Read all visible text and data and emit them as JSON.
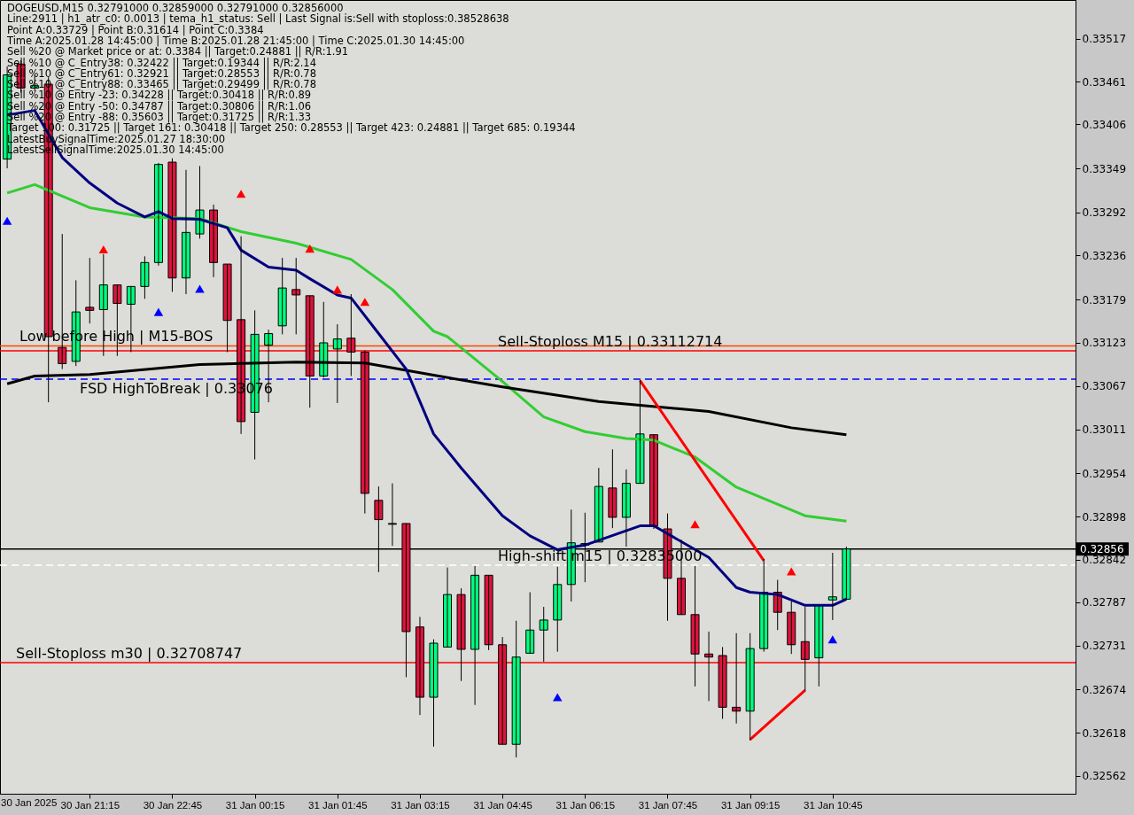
{
  "chart_data": {
    "type": "candlestick",
    "title": "DOGEUSD,M15  0.32791000 0.32859000 0.32791000 0.32856000",
    "annotations": [
      "Line:2911 | h1_atr_c0: 0.0013 | tema_h1_status: Sell | Last Signal is:Sell with stoploss:0.38528638",
      "Point A:0.33729 | Point B:0.31614 | Point C:0.3384",
      "Time A:2025.01.28 14:45:00 | Time B:2025.01.28 21:45:00 | Time C:2025.01.30 14:45:00",
      "Sell %20 @ Market price or at: 0.3384 || Target:0.24881 || R/R:1.91",
      "Sell %10 @ C_Entry38: 0.32422 || Target:0.19344 || R/R:2.14",
      "Sell %10 @ C_Entry61: 0.32921 || Target:0.28553 || R/R:0.78",
      "Sell %10 @ C_Entry88: 0.33465 || Target:0.29499 || R/R:0.78",
      "Sell %10 @ Entry -23: 0.34228 || Target:0.30418 || R/R:0.89",
      "Sell %20 @ Entry -50: 0.34787 || Target:0.30806 || R/R:1.06",
      "Sell %20 @ Entry -88: 0.35603 || Target:0.31725 || R/R:1.33",
      "Target 100: 0.31725 || Target 161: 0.30418 || Target 250: 0.28553 || Target 423: 0.24881 || Target 685: 0.19344",
      "LatestBuySignalTime:2025.01.27 18:30:00",
      "LatestSellSignalTime:2025.01.30 14:45:00",
      "30 Jan 2025"
    ],
    "x": [
      "2025-01-30T19:45",
      "2025-01-30T20:00",
      "2025-01-30T20:15",
      "2025-01-30T20:30",
      "2025-01-30T20:45",
      "2025-01-30T21:00",
      "2025-01-30T21:15",
      "2025-01-30T21:30",
      "2025-01-30T21:45",
      "2025-01-30T22:00",
      "2025-01-30T22:15",
      "2025-01-30T22:30",
      "2025-01-30T22:45",
      "2025-01-30T23:00",
      "2025-01-30T23:15",
      "2025-01-30T23:30",
      "2025-01-30T23:45",
      "2025-01-31T00:00",
      "2025-01-31T00:15",
      "2025-01-31T00:30",
      "2025-01-31T00:45",
      "2025-01-31T01:00",
      "2025-01-31T01:15",
      "2025-01-31T01:30",
      "2025-01-31T01:45",
      "2025-01-31T02:00",
      "2025-01-31T02:15",
      "2025-01-31T02:30",
      "2025-01-31T02:45",
      "2025-01-31T03:00",
      "2025-01-31T03:15",
      "2025-01-31T03:30",
      "2025-01-31T03:45",
      "2025-01-31T04:00",
      "2025-01-31T04:15",
      "2025-01-31T04:30",
      "2025-01-31T04:45",
      "2025-01-31T05:00",
      "2025-01-31T05:15",
      "2025-01-31T05:30",
      "2025-01-31T05:45",
      "2025-01-31T06:00",
      "2025-01-31T06:15",
      "2025-01-31T06:30",
      "2025-01-31T06:45",
      "2025-01-31T07:00",
      "2025-01-31T07:15",
      "2025-01-31T07:30",
      "2025-01-31T07:45",
      "2025-01-31T08:00",
      "2025-01-31T08:15",
      "2025-01-31T08:30",
      "2025-01-31T08:45",
      "2025-01-31T09:00",
      "2025-01-31T09:15",
      "2025-01-31T09:30",
      "2025-01-31T09:45",
      "2025-01-31T10:00",
      "2025-01-31T10:15",
      "2025-01-31T10:30",
      "2025-01-31T10:45",
      "2025-01-31T11:00"
    ],
    "ohlc": [
      [
        0.33361,
        0.33481,
        0.33349,
        0.3347
      ],
      [
        0.33484,
        0.33489,
        0.33447,
        0.33453
      ],
      [
        0.33453,
        0.3347,
        0.33449,
        0.33456
      ],
      [
        0.33458,
        0.33467,
        0.33046,
        0.33131
      ],
      [
        0.33117,
        0.33264,
        0.33089,
        0.33096
      ],
      [
        0.33099,
        0.33204,
        0.33093,
        0.33163
      ],
      [
        0.33169,
        0.33233,
        0.33148,
        0.33165
      ],
      [
        0.33166,
        0.33238,
        0.33106,
        0.33198
      ],
      [
        0.33198,
        0.33198,
        0.33106,
        0.33174
      ],
      [
        0.33173,
        0.33196,
        0.33111,
        0.33196
      ],
      [
        0.33196,
        0.33235,
        0.3318,
        0.33227
      ],
      [
        0.33227,
        0.33356,
        0.33223,
        0.33354
      ],
      [
        0.33357,
        0.33362,
        0.33189,
        0.33207
      ],
      [
        0.33207,
        0.33347,
        0.33186,
        0.33266
      ],
      [
        0.33264,
        0.33352,
        0.33258,
        0.33295
      ],
      [
        0.33295,
        0.33302,
        0.33208,
        0.33227
      ],
      [
        0.33225,
        0.33225,
        0.33111,
        0.33152
      ],
      [
        0.33153,
        0.33261,
        0.33005,
        0.33021
      ],
      [
        0.33033,
        0.33165,
        0.32972,
        0.33134
      ],
      [
        0.3312,
        0.3314,
        0.33046,
        0.33135
      ],
      [
        0.33145,
        0.33233,
        0.33134,
        0.33194
      ],
      [
        0.33192,
        0.33233,
        0.33134,
        0.33185
      ],
      [
        0.33184,
        0.33184,
        0.33039,
        0.3308
      ],
      [
        0.3308,
        0.33176,
        0.33078,
        0.33123
      ],
      [
        0.33115,
        0.33147,
        0.33045,
        0.33128
      ],
      [
        0.33129,
        0.33186,
        0.3308,
        0.33111
      ],
      [
        0.33111,
        0.33113,
        0.32902,
        0.32928
      ],
      [
        0.32919,
        0.32937,
        0.32826,
        0.32894
      ],
      [
        0.32889,
        0.32941,
        0.3286,
        0.32888
      ],
      [
        0.32889,
        0.32889,
        0.3269,
        0.32749
      ],
      [
        0.32755,
        0.32768,
        0.32641,
        0.32664
      ],
      [
        0.32664,
        0.32739,
        0.326,
        0.32734
      ],
      [
        0.32729,
        0.32832,
        0.32729,
        0.32797
      ],
      [
        0.32797,
        0.32805,
        0.32685,
        0.32726
      ],
      [
        0.32726,
        0.32834,
        0.32654,
        0.32822
      ],
      [
        0.32822,
        0.32822,
        0.32725,
        0.32732
      ],
      [
        0.32732,
        0.32742,
        0.32603,
        0.32603
      ],
      [
        0.32603,
        0.32763,
        0.32586,
        0.32716
      ],
      [
        0.32721,
        0.328,
        0.32721,
        0.32751
      ],
      [
        0.32751,
        0.32781,
        0.3271,
        0.32764
      ],
      [
        0.32764,
        0.32833,
        0.32723,
        0.3281
      ],
      [
        0.3281,
        0.32907,
        0.32788,
        0.32864
      ],
      [
        0.32861,
        0.32903,
        0.32813,
        0.32863
      ],
      [
        0.32865,
        0.32961,
        0.32865,
        0.32937
      ],
      [
        0.32935,
        0.32985,
        0.32883,
        0.32897
      ],
      [
        0.32897,
        0.32959,
        0.32859,
        0.32941
      ],
      [
        0.32941,
        0.33075,
        0.32941,
        0.33005
      ],
      [
        0.33004,
        0.33004,
        0.32882,
        0.32886
      ],
      [
        0.32882,
        0.32902,
        0.32763,
        0.32818
      ],
      [
        0.32818,
        0.32868,
        0.32771,
        0.32771
      ],
      [
        0.32771,
        0.32834,
        0.32678,
        0.3272
      ],
      [
        0.3272,
        0.32749,
        0.32659,
        0.32716
      ],
      [
        0.32718,
        0.32729,
        0.32636,
        0.32651
      ],
      [
        0.32651,
        0.32747,
        0.3263,
        0.32646
      ],
      [
        0.32646,
        0.32747,
        0.32608,
        0.32727
      ],
      [
        0.32727,
        0.32843,
        0.32723,
        0.328
      ],
      [
        0.328,
        0.32816,
        0.32751,
        0.32774
      ],
      [
        0.32774,
        0.32788,
        0.3272,
        0.32732
      ],
      [
        0.32736,
        0.32781,
        0.32672,
        0.32713
      ],
      [
        0.32715,
        0.32783,
        0.32678,
        0.32783
      ],
      [
        0.3279,
        0.32851,
        0.32764,
        0.32794
      ],
      [
        0.32791,
        0.32859,
        0.32791,
        0.32856
      ]
    ],
    "colors": [
      "#00ff7f",
      "#dc143c",
      "#00ff7f",
      "#dc143c",
      "#dc143c",
      "#00ff7f",
      "#dc143c",
      "#00ff7f",
      "#dc143c",
      "#00ff7f",
      "#00ff7f",
      "#00ff7f",
      "#dc143c",
      "#00ff7f",
      "#00ff7f",
      "#dc143c",
      "#dc143c",
      "#dc143c",
      "#00ff7f",
      "#00ff7f",
      "#00ff7f",
      "#dc143c",
      "#dc143c",
      "#00ff7f",
      "#00ff7f",
      "#dc143c",
      "#dc143c",
      "#dc143c",
      "#dc143c",
      "#dc143c",
      "#dc143c",
      "#00ff7f",
      "#00ff7f",
      "#dc143c",
      "#00ff7f",
      "#dc143c",
      "#dc143c",
      "#00ff7f",
      "#00ff7f",
      "#00ff7f",
      "#00ff7f",
      "#00ff7f",
      "#00ff7f",
      "#00ff7f",
      "#dc143c",
      "#00ff7f",
      "#00ff7f",
      "#dc143c",
      "#dc143c",
      "#dc143c",
      "#dc143c",
      "#dc143c",
      "#dc143c",
      "#dc143c",
      "#00ff7f",
      "#00ff7f",
      "#dc143c",
      "#dc143c",
      "#dc143c",
      "#00ff7f",
      "#00ff7f",
      "#00ff7f"
    ],
    "series": [
      {
        "type": "line",
        "color": "#32cd32",
        "x": [
          "2025-01-30T19:45",
          "2025-01-30T20:15",
          "2025-01-30T21:15",
          "2025-01-30T22:15",
          "2025-01-30T23:15",
          "2025-01-31T00:00",
          "2025-01-31T01:00",
          "2025-01-31T02:00",
          "2025-01-31T02:45",
          "2025-01-31T03:30",
          "2025-01-31T03:45",
          "2025-01-31T04:45",
          "2025-01-31T05:30",
          "2025-01-31T06:15",
          "2025-01-31T07:00",
          "2025-01-31T07:30",
          "2025-01-31T08:15",
          "2025-01-31T09:00",
          "2025-01-31T10:15",
          "2025-01-31T11:00"
        ],
        "values": [
          0.33317,
          0.33328,
          0.33298,
          0.33286,
          0.33284,
          0.33267,
          0.33252,
          0.33231,
          0.33192,
          0.33138,
          0.33131,
          0.33073,
          0.33027,
          0.33008,
          0.32999,
          0.32997,
          0.32975,
          0.32936,
          0.32899,
          0.32892
        ]
      },
      {
        "type": "line",
        "color": "#000000",
        "x": [
          "2025-01-30T19:45",
          "2025-01-30T20:15",
          "2025-01-30T21:15",
          "2025-01-30T23:15",
          "2025-01-31T01:00",
          "2025-01-31T02:15",
          "2025-01-31T03:30",
          "2025-01-31T04:45",
          "2025-01-31T06:30",
          "2025-01-31T08:30",
          "2025-01-31T10:00",
          "2025-01-31T11:00"
        ],
        "values": [
          0.3307,
          0.3308,
          0.33082,
          0.33095,
          0.33098,
          0.33097,
          0.33081,
          0.33066,
          0.33047,
          0.33034,
          0.33013,
          0.33004
        ]
      },
      {
        "type": "line",
        "color": "#000080",
        "x": [
          "2025-01-30T19:45",
          "2025-01-30T20:15",
          "2025-01-30T20:45",
          "2025-01-30T21:15",
          "2025-01-30T21:45",
          "2025-01-30T22:15",
          "2025-01-30T22:30",
          "2025-01-30T22:45",
          "2025-01-30T23:15",
          "2025-01-30T23:45",
          "2025-01-31T00:00",
          "2025-01-31T00:30",
          "2025-01-31T01:00",
          "2025-01-31T01:15",
          "2025-01-31T01:45",
          "2025-01-31T02:00",
          "2025-01-31T02:30",
          "2025-01-31T03:00",
          "2025-01-31T03:30",
          "2025-01-31T04:00",
          "2025-01-31T04:45",
          "2025-01-31T05:15",
          "2025-01-31T05:45",
          "2025-01-31T06:15",
          "2025-01-31T07:15",
          "2025-01-31T07:30",
          "2025-01-31T08:30",
          "2025-01-31T09:00",
          "2025-01-31T09:15",
          "2025-01-31T09:45",
          "2025-01-31T10:15",
          "2025-01-31T10:45",
          "2025-01-31T11:00"
        ],
        "values": [
          0.33418,
          0.33424,
          0.33363,
          0.3333,
          0.33304,
          0.33286,
          0.33293,
          0.33284,
          0.33283,
          0.33272,
          0.33243,
          0.33221,
          0.33217,
          0.33206,
          0.33185,
          0.33181,
          0.33135,
          0.33089,
          0.33005,
          0.32961,
          0.32899,
          0.32873,
          0.32855,
          0.32861,
          0.32886,
          0.32886,
          0.32845,
          0.32806,
          0.328,
          0.32797,
          0.32783,
          0.32783,
          0.32791
        ]
      },
      {
        "type": "line",
        "color": "#ff0000",
        "x": [
          "2025-01-31T07:15",
          "2025-01-31T09:30"
        ],
        "values": [
          0.33074,
          0.32841
        ]
      },
      {
        "type": "line",
        "color": "#ff0000",
        "x": [
          "2025-01-31T09:15",
          "2025-01-31T10:15"
        ],
        "values": [
          0.32609,
          0.32673
        ]
      },
      {
        "type": "scatter",
        "color": "#ff0000",
        "marker": "triangle",
        "x": [
          "2025-01-30T21:30",
          "2025-01-31T00:00",
          "2025-01-31T01:15",
          "2025-01-31T01:45",
          "2025-01-31T02:15",
          "2025-01-31T08:15",
          "2025-01-31T10:00"
        ],
        "values": [
          0.33244,
          0.33316,
          0.33245,
          0.33192,
          0.33176,
          0.32888,
          0.32827
        ]
      },
      {
        "type": "scatter",
        "color": "#0000ff",
        "marker": "triangle",
        "x": [
          "2025-01-30T19:45",
          "2025-01-30T22:30",
          "2025-01-30T23:15",
          "2025-01-31T05:45",
          "2025-01-31T10:45"
        ],
        "values": [
          0.33281,
          0.33163,
          0.33193,
          0.32664,
          0.32739
        ]
      }
    ],
    "ref_lines": [
      {
        "axis": "y",
        "value": 0.33119,
        "label": "Low before High | M15-BOS",
        "color": "#ff4500"
      },
      {
        "axis": "y",
        "value": 0.33112714,
        "label": "Sell-Stoploss M15 | 0.33112714",
        "color": "#ff0000"
      },
      {
        "axis": "y",
        "value": 0.33076,
        "label": "FSD HighToBreak | 0.33076",
        "color": "#0000ff",
        "line_style": "dashed"
      },
      {
        "axis": "y",
        "value": 0.32856,
        "label": "0.32856",
        "color": "#000000"
      },
      {
        "axis": "y",
        "value": 0.32835,
        "label": "High-shift m15 | 0.32835000",
        "color": "#ffffff",
        "line_style": "dashed"
      },
      {
        "axis": "y",
        "value": 0.32708747,
        "label": "Sell-Stoploss m30 | 0.32708747",
        "color": "#ff0000"
      }
    ],
    "xlim": [
      "2025-01-30T19:42",
      "2025-01-31T15:05"
    ],
    "xticks": [
      {
        "value": "2025-01-30T21:15",
        "label": "30 Jan 21:15"
      },
      {
        "value": "2025-01-30T22:45",
        "label": "30 Jan 22:45"
      },
      {
        "value": "2025-01-31T00:15",
        "label": "31 Jan 00:15"
      },
      {
        "value": "2025-01-31T01:45",
        "label": "31 Jan 01:45"
      },
      {
        "value": "2025-01-31T03:15",
        "label": "31 Jan 03:15"
      },
      {
        "value": "2025-01-31T04:45",
        "label": "31 Jan 04:45"
      },
      {
        "value": "2025-01-31T06:15",
        "label": "31 Jan 06:15"
      },
      {
        "value": "2025-01-31T07:45",
        "label": "31 Jan 07:45"
      },
      {
        "value": "2025-01-31T09:15",
        "label": "31 Jan 09:15"
      },
      {
        "value": "2025-01-31T10:45",
        "label": "31 Jan 10:45"
      }
    ],
    "ylim": [
      0.32539,
      0.33567
    ],
    "yticks": [
      0.33517,
      0.33461,
      0.33406,
      0.33349,
      0.33292,
      0.33236,
      0.33179,
      0.33123,
      0.33067,
      0.33011,
      0.32954,
      0.32898,
      0.32842,
      0.32787,
      0.32731,
      0.32674,
      0.32618,
      0.32562
    ],
    "grid": false
  }
}
